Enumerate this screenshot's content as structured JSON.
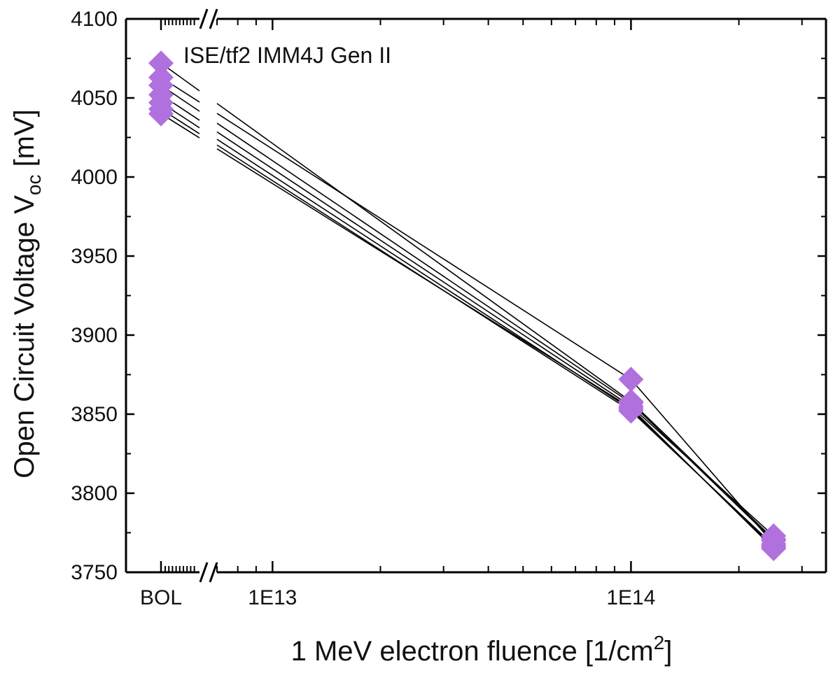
{
  "chart_data": {
    "type": "line",
    "annotation": "ISE/tf2 IMM4J Gen II",
    "xlabel": {
      "main": "1 MeV electron fluence [1/cm",
      "sup": "2",
      "end": "]"
    },
    "ylabel": {
      "main": "Open Circuit Voltage V",
      "sub": "oc",
      "end": " [mV]"
    },
    "x_scale": "log",
    "x_break": true,
    "x_categories_before_break": [
      "BOL"
    ],
    "xlim": [
      7000000000000.0,
      350000000000000.0
    ],
    "ylim": [
      3750,
      4100
    ],
    "y_ticks": [
      3750,
      3800,
      3850,
      3900,
      3950,
      4000,
      4050,
      4100
    ],
    "y_tick_labels": [
      "3750",
      "3800",
      "3850",
      "3900",
      "3950",
      "4000",
      "4050",
      "4100"
    ],
    "x_tick_labels": [
      {
        "label": "BOL",
        "value": "BOL"
      },
      {
        "label": "1E13",
        "value": 10000000000000.0
      },
      {
        "label": "1E14",
        "value": 100000000000000.0
      }
    ],
    "grid": false,
    "marker": "diamond",
    "marker_color": "#b070de",
    "line_color": "#000000",
    "series": [
      {
        "points": [
          {
            "x": "BOL",
            "y": 4072
          },
          {
            "x": 100000000000000.0,
            "y": 3858
          },
          {
            "x": 250000000000000.0,
            "y": 3771
          }
        ]
      },
      {
        "points": [
          {
            "x": "BOL",
            "y": 4063
          },
          {
            "x": 100000000000000.0,
            "y": 3872
          },
          {
            "x": 250000000000000.0,
            "y": 3768
          }
        ]
      },
      {
        "points": [
          {
            "x": "BOL",
            "y": 4058
          },
          {
            "x": 100000000000000.0,
            "y": 3857
          },
          {
            "x": 250000000000000.0,
            "y": 3770
          }
        ]
      },
      {
        "points": [
          {
            "x": "BOL",
            "y": 4052
          },
          {
            "x": 100000000000000.0,
            "y": 3855
          },
          {
            "x": 250000000000000.0,
            "y": 3773
          }
        ]
      },
      {
        "points": [
          {
            "x": "BOL",
            "y": 4047
          },
          {
            "x": 100000000000000.0,
            "y": 3853
          },
          {
            "x": 250000000000000.0,
            "y": 3766
          }
        ]
      },
      {
        "points": [
          {
            "x": "BOL",
            "y": 4043
          },
          {
            "x": 100000000000000.0,
            "y": 3852
          },
          {
            "x": 250000000000000.0,
            "y": 3767
          }
        ]
      },
      {
        "points": [
          {
            "x": "BOL",
            "y": 4040
          },
          {
            "x": 100000000000000.0,
            "y": 3854
          },
          {
            "x": 250000000000000.0,
            "y": 3765
          }
        ]
      }
    ]
  }
}
